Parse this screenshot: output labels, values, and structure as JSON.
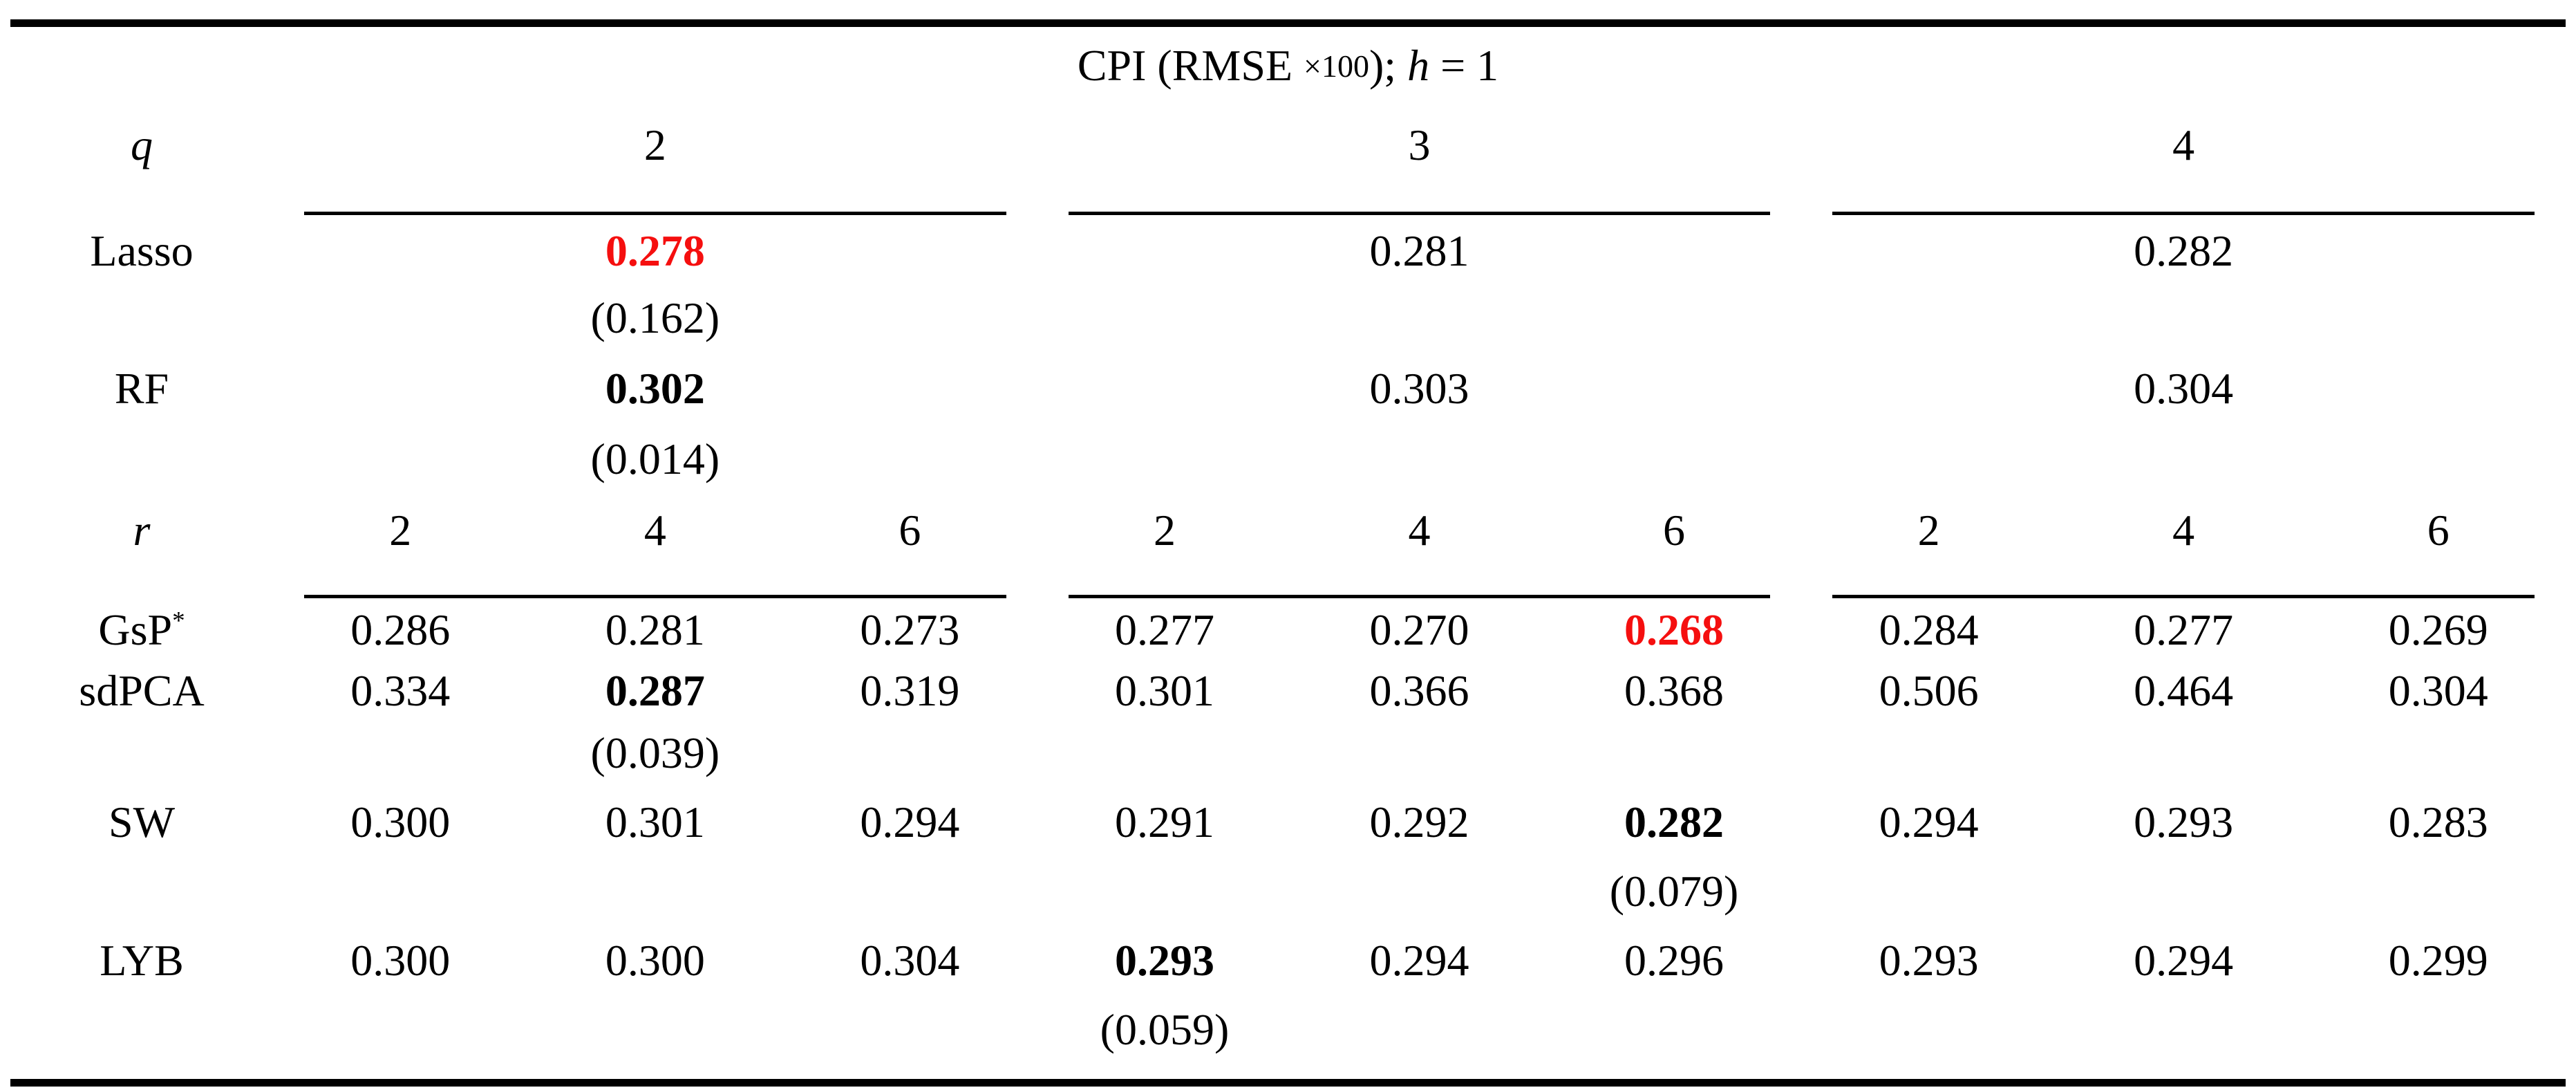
{
  "colors": {
    "highlight_red": "#f50f0f",
    "text": "#000000",
    "rule": "#000000"
  },
  "table": {
    "title": {
      "part1": "CPI (RMSE ",
      "times": "×100",
      "part2": "); ",
      "hvar": "h",
      "part3": " = 1"
    },
    "q_header": {
      "label": "q",
      "groups": [
        "2",
        "3",
        "4"
      ]
    },
    "group_rows": [
      {
        "label": "Lasso",
        "cells": [
          {
            "value": "0.278",
            "bold": true,
            "red": true,
            "se": "(0.162)"
          },
          {
            "value": "0.281"
          },
          {
            "value": "0.282"
          }
        ]
      },
      {
        "label": "RF",
        "cells": [
          {
            "value": "0.302",
            "bold": true,
            "se": "(0.014)"
          },
          {
            "value": "0.303"
          },
          {
            "value": "0.304"
          }
        ]
      }
    ],
    "r_header": {
      "label": "r",
      "values": [
        "2",
        "4",
        "6",
        "2",
        "4",
        "6",
        "2",
        "4",
        "6"
      ]
    },
    "method_rows": [
      {
        "label": "GsP",
        "label_sup": "*",
        "cells": [
          {
            "value": "0.286"
          },
          {
            "value": "0.281"
          },
          {
            "value": "0.273"
          },
          {
            "value": "0.277"
          },
          {
            "value": "0.270"
          },
          {
            "value": "0.268",
            "bold": true,
            "red": true
          },
          {
            "value": "0.284"
          },
          {
            "value": "0.277"
          },
          {
            "value": "0.269"
          }
        ]
      },
      {
        "label": "sdPCA",
        "cells": [
          {
            "value": "0.334"
          },
          {
            "value": "0.287",
            "bold": true,
            "se": "(0.039)"
          },
          {
            "value": "0.319"
          },
          {
            "value": "0.301"
          },
          {
            "value": "0.366"
          },
          {
            "value": "0.368"
          },
          {
            "value": "0.506"
          },
          {
            "value": "0.464"
          },
          {
            "value": "0.304"
          }
        ]
      },
      {
        "label": "SW",
        "cells": [
          {
            "value": "0.300"
          },
          {
            "value": "0.301"
          },
          {
            "value": "0.294"
          },
          {
            "value": "0.291"
          },
          {
            "value": "0.292"
          },
          {
            "value": "0.282",
            "bold": true,
            "se": "(0.079)"
          },
          {
            "value": "0.294"
          },
          {
            "value": "0.293"
          },
          {
            "value": "0.283"
          }
        ]
      },
      {
        "label": "LYB",
        "cells": [
          {
            "value": "0.300"
          },
          {
            "value": "0.300"
          },
          {
            "value": "0.304"
          },
          {
            "value": "0.293",
            "bold": true,
            "se": "(0.059)"
          },
          {
            "value": "0.294"
          },
          {
            "value": "0.296"
          },
          {
            "value": "0.293"
          },
          {
            "value": "0.294"
          },
          {
            "value": "0.299"
          }
        ]
      }
    ]
  }
}
